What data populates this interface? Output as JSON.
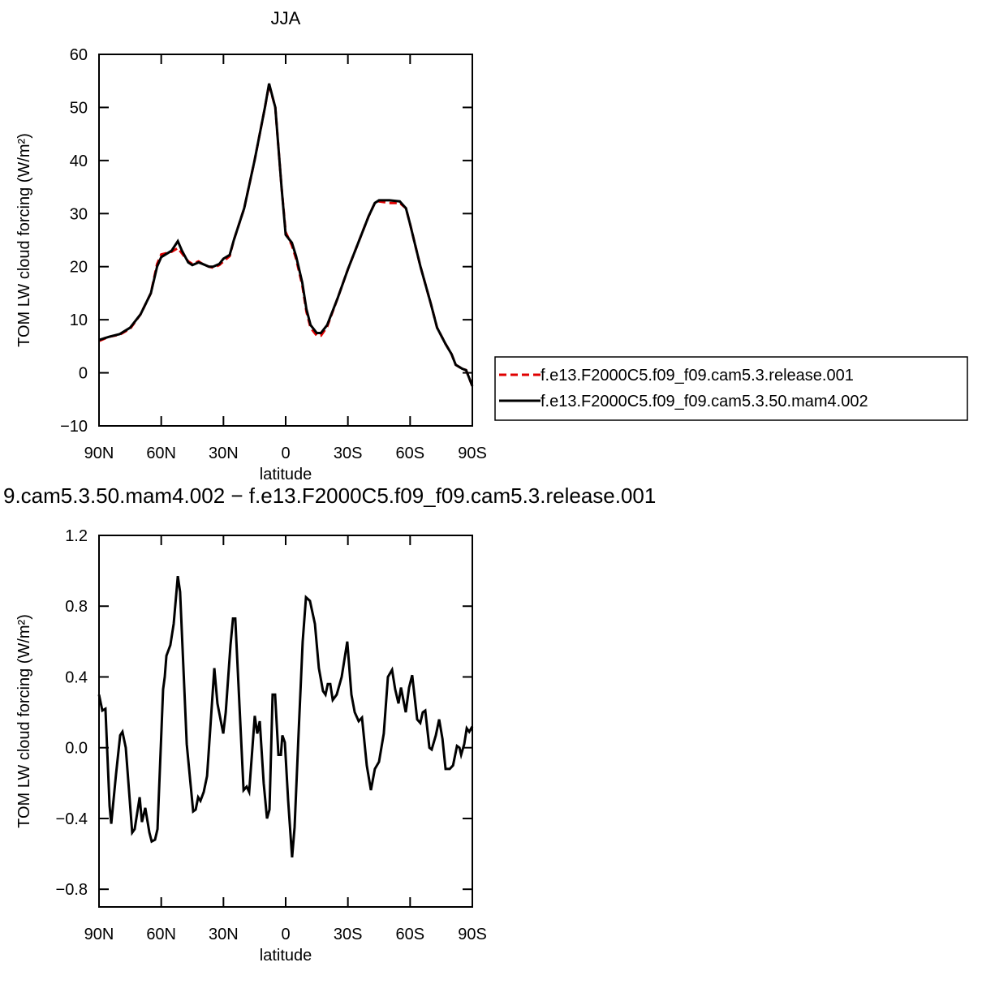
{
  "chart_data": [
    {
      "type": "line",
      "title": "JJA",
      "xlabel": "latitude",
      "ylabel": "TOM LW cloud forcing (W/m²)",
      "x": [
        90,
        85,
        80,
        75,
        70,
        65,
        62,
        60,
        55,
        52,
        50,
        47,
        45,
        42,
        40,
        37,
        35,
        32,
        30,
        27,
        25,
        20,
        15,
        10,
        8,
        5,
        2,
        0,
        -3,
        -5,
        -8,
        -10,
        -12,
        -15,
        -17,
        -20,
        -25,
        -30,
        -35,
        -40,
        -43,
        -45,
        -50,
        -55,
        -58,
        -60,
        -65,
        -70,
        -73,
        -77,
        -80,
        -82,
        -85,
        -87,
        -90
      ],
      "series": [
        {
          "name": "f.e13.F2000C5.f09_f09.cam5.3.release.001",
          "color": "#e00000",
          "dashed": true,
          "values": [
            6,
            6.8,
            7.2,
            8.3,
            11,
            15,
            20.5,
            22.3,
            22.8,
            23.5,
            22.5,
            21,
            20.5,
            21,
            20.5,
            20,
            19.8,
            20.3,
            21,
            22,
            25,
            31,
            40,
            50,
            54.3,
            50,
            35,
            26.5,
            24,
            21.5,
            16.5,
            11.5,
            8.5,
            7,
            7,
            8.7,
            14,
            19.5,
            24.5,
            29.5,
            32,
            32.3,
            32,
            32,
            31,
            28,
            20,
            13,
            8.5,
            5.5,
            3.5,
            1.5,
            0.8,
            0.5,
            -2.5
          ]
        },
        {
          "name": "f.e13.F2000C5.f09_f09.cam5.3.50.mam4.002",
          "color": "#000000",
          "dashed": false,
          "values": [
            6.2,
            6.8,
            7.3,
            8.5,
            11,
            15,
            20,
            21.8,
            23,
            24.8,
            23,
            20.8,
            20.3,
            20.8,
            20.5,
            20,
            20,
            20.5,
            21.5,
            22.2,
            25,
            31,
            40,
            50,
            54.5,
            50,
            35,
            26,
            24.5,
            22,
            17,
            12,
            9,
            7.5,
            7.5,
            9,
            14,
            19.5,
            24.5,
            29.5,
            32,
            32.5,
            32.5,
            32.3,
            31,
            28,
            20,
            13,
            8.5,
            5.5,
            3.5,
            1.5,
            0.8,
            0.5,
            -2.5
          ]
        }
      ],
      "xlim": [
        90,
        -90
      ],
      "xticks": [
        {
          "value": 90,
          "label": "90N"
        },
        {
          "value": 60,
          "label": "60N"
        },
        {
          "value": 30,
          "label": "30N"
        },
        0,
        {
          "value": -30,
          "label": "30S"
        },
        {
          "value": -60,
          "label": "60S"
        },
        {
          "value": -90,
          "label": "90S"
        }
      ],
      "ylim": [
        -10,
        60
      ],
      "yticks": [
        {
          "value": -10,
          "label": "−10"
        },
        0,
        10,
        20,
        30,
        40,
        50,
        60
      ],
      "legend": "right"
    },
    {
      "type": "line",
      "title": "9.cam5.3.50.mam4.002 − f.e13.F2000C5.f09_f09.cam5.3.release.001",
      "xlabel": "latitude",
      "ylabel": "TOM LW cloud forcing (W/m²)",
      "x": [
        90,
        88.4,
        86.9,
        84.9,
        84.1,
        81.8,
        79.8,
        78.7,
        77.1,
        74,
        72.8,
        70.4,
        69.3,
        67.7,
        65.7,
        64.6,
        63,
        61.8,
        59.1,
        58.3,
        57.5,
        55.6,
        54,
        52,
        50.9,
        47.7,
        44.6,
        43.4,
        42.2,
        41.1,
        39.5,
        37.9,
        36.4,
        34.4,
        32.9,
        30.1,
        28.9,
        26.6,
        25.4,
        24.3,
        20.3,
        18.8,
        17.6,
        14.9,
        13.7,
        12.5,
        10.6,
        9,
        7.8,
        6.3,
        5.1,
        3.5,
        2.3,
        1.6,
        0.4,
        -1.2,
        -3.1,
        -4.3,
        -6.3,
        -8.2,
        -9.8,
        -11.7,
        -14.1,
        -16,
        -18,
        -19.2,
        -20.3,
        -21.5,
        -22.7,
        -24.6,
        -27,
        -29.7,
        -31.7,
        -33.3,
        -35.2,
        -36.8,
        -39.1,
        -41.1,
        -43,
        -45,
        -47.3,
        -49.3,
        -51.3,
        -52.8,
        -54.4,
        -55.6,
        -57.9,
        -59.5,
        -61,
        -63.4,
        -64.9,
        -66.1,
        -67.3,
        -69.3,
        -70.4,
        -72.4,
        -74,
        -75.6,
        -77.1,
        -79.1,
        -80.7,
        -82.6,
        -83.8,
        -84.6,
        -86.1,
        -87.3,
        -88.5,
        -90
      ],
      "series": [
        {
          "color": "#000000",
          "dashed": false,
          "values": [
            0.3,
            0.21,
            0.22,
            -0.33,
            -0.43,
            -0.15,
            0.07,
            0.09,
            0,
            -0.48,
            -0.46,
            -0.28,
            -0.42,
            -0.34,
            -0.48,
            -0.53,
            -0.52,
            -0.46,
            0.33,
            0.4,
            0.52,
            0.58,
            0.7,
            0.97,
            0.88,
            0.02,
            -0.36,
            -0.35,
            -0.28,
            -0.3,
            -0.25,
            -0.16,
            0.1,
            0.45,
            0.25,
            0.08,
            0.2,
            0.58,
            0.73,
            0.73,
            -0.24,
            -0.22,
            -0.25,
            0.18,
            0.08,
            0.15,
            -0.2,
            -0.4,
            -0.35,
            0.3,
            0.3,
            -0.04,
            -0.04,
            0.07,
            0.03,
            -0.3,
            -0.62,
            -0.45,
            0.1,
            0.6,
            0.85,
            0.83,
            0.7,
            0.45,
            0.32,
            0.3,
            0.36,
            0.36,
            0.27,
            0.3,
            0.4,
            0.6,
            0.3,
            0.2,
            0.15,
            0.17,
            -0.1,
            -0.24,
            -0.12,
            -0.08,
            0.08,
            0.4,
            0.44,
            0.33,
            0.25,
            0.34,
            0.2,
            0.34,
            0.41,
            0.16,
            0.14,
            0.2,
            0.21,
            0,
            -0.01,
            0.07,
            0.16,
            0.05,
            -0.12,
            -0.12,
            -0.1,
            0.01,
            0,
            -0.04,
            0.02,
            0.11,
            0.09,
            0.12
          ]
        }
      ],
      "xlim": [
        90,
        -90
      ],
      "xticks": [
        {
          "value": 90,
          "label": "90N"
        },
        {
          "value": 60,
          "label": "60N"
        },
        {
          "value": 30,
          "label": "30N"
        },
        0,
        {
          "value": -30,
          "label": "30S"
        },
        {
          "value": -60,
          "label": "60S"
        },
        {
          "value": -90,
          "label": "90S"
        }
      ],
      "ylim": [
        -0.9,
        1.2
      ],
      "yticks": [
        {
          "value": -0.8,
          "label": "−0.8"
        },
        {
          "value": -0.4,
          "label": "−0.4"
        },
        {
          "value": 0,
          "label": "0.0"
        },
        0.4,
        0.8,
        1.2
      ]
    }
  ]
}
